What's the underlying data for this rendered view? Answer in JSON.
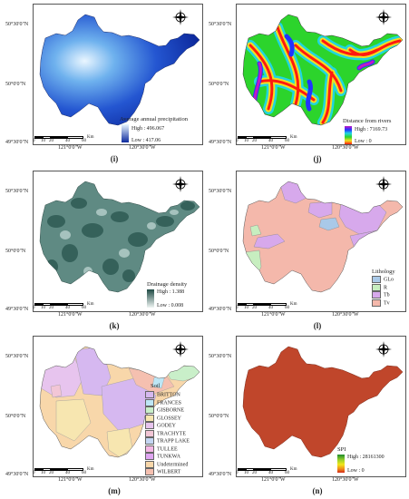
{
  "panels": {
    "i": {
      "caption": "(i)",
      "lat_top": "50°30'0\"N",
      "lat_mid": "50°0'0\"N",
      "lat_bot": "49°30'0\"N",
      "lon_left": "121°0'0\"W",
      "lon_right": "120°30'0\"W",
      "legend_title": "Average annual precipitation",
      "legend_high": "High : 496.067",
      "legend_low": "Low : 417.06"
    },
    "j": {
      "caption": "(j)",
      "lat_top": "50°30'0\"N",
      "lat_mid": "50°0'0\"N",
      "lat_bot": "49°30'0\"N",
      "lon_left": "121°0'0\"W",
      "lon_right": "120°30'0\"W",
      "legend_title": "Distance from rivers",
      "legend_high": "High : 7169.73",
      "legend_low": "Low : 0"
    },
    "k": {
      "caption": "(k)",
      "lat_top": "50°30'0\"N",
      "lat_mid": "50°0'0\"N",
      "lat_bot": "49°30'0\"N",
      "lon_left": "121°0'0\"W",
      "lon_right": "120°30'0\"W",
      "legend_title": "Drainage density",
      "legend_high": "High : 1.388",
      "legend_low": "Low : 0.008"
    },
    "l": {
      "caption": "(l)",
      "lat_top": "50°30'0\"N",
      "lat_mid": "50°0'0\"N",
      "lat_bot": "49°30'0\"N",
      "lon_left": "121°0'0\"W",
      "lon_right": "120°30'0\"W",
      "legend_title": "Lithology",
      "legend_items": [
        "GLo",
        "R",
        "Tb",
        "Tv"
      ]
    },
    "m": {
      "caption": "(m)",
      "lat_top": "50°30'0\"N",
      "lat_mid": "50°0'0\"N",
      "lat_bot": "49°30'0\"N",
      "lon_left": "121°0'0\"W",
      "lon_right": "120°30'0\"W",
      "legend_title": "Soil",
      "legend_items": [
        "BRITTON",
        "FRANCES",
        "GISBORNE",
        "GLOSSEY",
        "GODEY",
        "TRACHYTE",
        "TRAPP LAKE",
        "TULLEE",
        "TUNKWA",
        "Undetermined",
        "WILBERT"
      ]
    },
    "n": {
      "caption": "(n)",
      "lat_top": "50°30'0\"N",
      "lat_mid": "50°0'0\"N",
      "lat_bot": "49°30'0\"N",
      "lon_left": "121°0'0\"W",
      "lon_right": "120°30'0\"W",
      "legend_title": "SPI",
      "legend_high": "High : 28161300",
      "legend_low": "Low : 0"
    }
  },
  "scale": {
    "ticks": [
      "0",
      "10",
      "20",
      "40",
      "60"
    ],
    "unit": "Km"
  },
  "north_arrow": {
    "n": "N",
    "s": "S",
    "e": "E",
    "w": "W"
  },
  "colors": {
    "precip_high": "#e8f6ff",
    "precip_low": "#0d2a9e",
    "drainage": "#3b6b63",
    "spi": "#c0462b",
    "lith_GLo": "#a9c9e8",
    "lith_R": "#c7eec0",
    "lith_Tb": "#d7a9ec",
    "lith_Tv": "#f4b8ab",
    "soil_BRITTON": "#d6b8f0",
    "soil_FRANCES": "#bde6f5",
    "soil_GISBORNE": "#c9efc9",
    "soil_GLOSSEY": "#f7e6b0",
    "soil_GODEY": "#e7c4ee",
    "soil_TRACHYTE": "#f2c6d6",
    "soil_TRAPP_LAKE": "#c4d6f3",
    "soil_TULLEE": "#f5b8e6",
    "soil_TUNKWA": "#dfa5f2",
    "soil_Undetermined": "#f8d7aa",
    "soil_WILBERT": "#f5c0b0"
  }
}
